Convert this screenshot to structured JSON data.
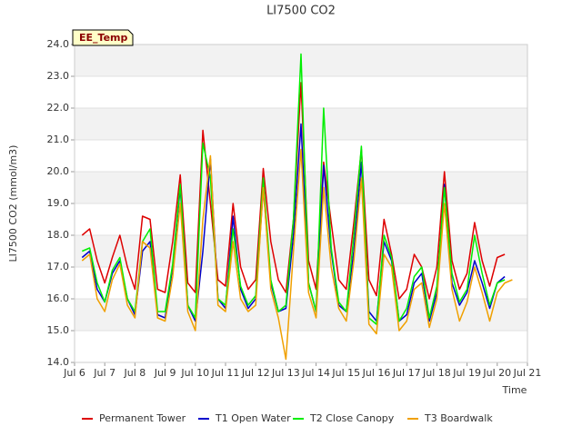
{
  "chart_data": {
    "type": "line",
    "title": "LI7500 CO2",
    "x_label": "Time",
    "y_label": "LI7500 CO2 (mmol/m3)",
    "annotation": "EE_Temp",
    "xlim": [
      6,
      21
    ],
    "ylim": [
      14,
      24
    ],
    "xticks": [
      {
        "value": 6,
        "label": "Jul 6"
      },
      {
        "value": 7,
        "label": "Jul 7"
      },
      {
        "value": 8,
        "label": "Jul 8"
      },
      {
        "value": 9,
        "label": "Jul 9"
      },
      {
        "value": 10,
        "label": "Jul 10"
      },
      {
        "value": 11,
        "label": "Jul 11"
      },
      {
        "value": 12,
        "label": "Jul 12"
      },
      {
        "value": 13,
        "label": "Jul 13"
      },
      {
        "value": 14,
        "label": "Jul 14"
      },
      {
        "value": 15,
        "label": "Jul 15"
      },
      {
        "value": 16,
        "label": "Jul 16"
      },
      {
        "value": 17,
        "label": "Jul 17"
      },
      {
        "value": 18,
        "label": "Jul 18"
      },
      {
        "value": 19,
        "label": "Jul 19"
      },
      {
        "value": 20,
        "label": "Jul 20"
      },
      {
        "value": 21,
        "label": "Jul 21"
      }
    ],
    "yticks": [
      {
        "value": 14,
        "label": "14.0"
      },
      {
        "value": 15,
        "label": "15.0"
      },
      {
        "value": 16,
        "label": "16.0"
      },
      {
        "value": 17,
        "label": "17.0"
      },
      {
        "value": 18,
        "label": "18.0"
      },
      {
        "value": 19,
        "label": "19.0"
      },
      {
        "value": 20,
        "label": "20.0"
      },
      {
        "value": 21,
        "label": "21.0"
      },
      {
        "value": 22,
        "label": "22.0"
      },
      {
        "value": 23,
        "label": "23.0"
      },
      {
        "value": 24,
        "label": "24.0"
      }
    ],
    "grid": true,
    "legend": "bottom",
    "x": [
      6.25,
      6.5,
      6.75,
      7,
      7.25,
      7.5,
      7.75,
      8,
      8.25,
      8.5,
      8.75,
      9,
      9.25,
      9.5,
      9.75,
      10,
      10.25,
      10.5,
      10.75,
      11,
      11.25,
      11.5,
      11.75,
      12,
      12.25,
      12.5,
      12.75,
      13,
      13.25,
      13.5,
      13.75,
      14,
      14.25,
      14.5,
      14.75,
      15,
      15.25,
      15.5,
      15.75,
      16,
      16.25,
      16.5,
      16.75,
      17,
      17.25,
      17.5,
      17.75,
      18,
      18.25,
      18.5,
      18.75,
      19,
      19.25,
      19.5,
      19.75,
      20,
      20.25,
      20.5
    ],
    "series": [
      {
        "name": "Permanent Tower",
        "color": "#dd0000",
        "values": [
          18.0,
          18.2,
          17.2,
          16.5,
          17.3,
          18.0,
          17.0,
          16.3,
          18.6,
          18.5,
          16.3,
          16.2,
          17.8,
          19.9,
          16.5,
          16.2,
          21.3,
          19.0,
          16.6,
          16.4,
          19.0,
          17.0,
          16.3,
          16.6,
          20.1,
          17.8,
          16.6,
          16.2,
          18.5,
          22.8,
          17.2,
          16.3,
          20.3,
          18.4,
          16.6,
          16.3,
          18.4,
          20.7,
          16.6,
          16.1,
          18.5,
          17.4,
          16.0,
          16.3,
          17.4,
          17.0,
          16.0,
          17.0,
          20.0,
          17.2,
          16.3,
          16.8,
          18.4,
          17.2,
          16.4,
          17.3,
          17.4,
          null
        ]
      },
      {
        "name": "T1 Open Water",
        "color": "#0000cc",
        "values": [
          17.3,
          17.5,
          16.3,
          15.9,
          16.8,
          17.2,
          16.0,
          15.5,
          17.5,
          17.8,
          15.5,
          15.4,
          17.0,
          19.5,
          15.8,
          15.3,
          17.5,
          20.4,
          16.0,
          15.7,
          18.6,
          16.3,
          15.7,
          16.0,
          19.5,
          16.5,
          15.6,
          15.7,
          18.0,
          21.5,
          16.5,
          15.6,
          20.2,
          17.5,
          15.8,
          15.6,
          17.5,
          20.3,
          15.6,
          15.3,
          17.8,
          17.2,
          15.3,
          15.5,
          16.5,
          16.8,
          15.3,
          16.2,
          19.6,
          16.5,
          15.8,
          16.2,
          17.2,
          16.5,
          15.7,
          16.5,
          16.7,
          null
        ]
      },
      {
        "name": "T2 Close Canopy",
        "color": "#00ee00",
        "values": [
          17.5,
          17.6,
          16.5,
          15.9,
          16.9,
          17.3,
          16.0,
          15.6,
          17.8,
          18.2,
          15.6,
          15.6,
          17.1,
          19.6,
          15.8,
          15.4,
          20.9,
          19.8,
          16.0,
          15.8,
          18.2,
          16.4,
          15.8,
          16.1,
          19.8,
          16.6,
          15.6,
          15.8,
          18.5,
          23.7,
          16.5,
          15.6,
          22.0,
          17.6,
          15.9,
          15.6,
          18.0,
          20.8,
          15.4,
          15.2,
          18.0,
          17.3,
          15.3,
          15.7,
          16.7,
          17.0,
          15.4,
          16.4,
          19.5,
          16.8,
          15.9,
          16.3,
          18.0,
          16.8,
          15.8,
          16.5,
          16.6,
          null
        ]
      },
      {
        "name": "T3 Boardwalk",
        "color": "#f0a000",
        "values": [
          17.2,
          17.4,
          16.0,
          15.6,
          16.6,
          17.1,
          15.8,
          15.4,
          17.8,
          17.6,
          15.4,
          15.3,
          16.7,
          19.0,
          15.6,
          15.0,
          18.5,
          20.5,
          15.8,
          15.6,
          17.8,
          16.0,
          15.6,
          15.8,
          19.5,
          16.3,
          15.4,
          14.1,
          17.5,
          20.7,
          16.2,
          15.4,
          19.5,
          17.0,
          15.7,
          15.3,
          17.2,
          19.8,
          15.2,
          14.9,
          17.4,
          17.0,
          15.0,
          15.3,
          16.3,
          16.5,
          15.1,
          16.0,
          19.0,
          16.3,
          15.3,
          15.9,
          17.0,
          16.2,
          15.3,
          16.2,
          16.5,
          16.6
        ]
      }
    ]
  }
}
